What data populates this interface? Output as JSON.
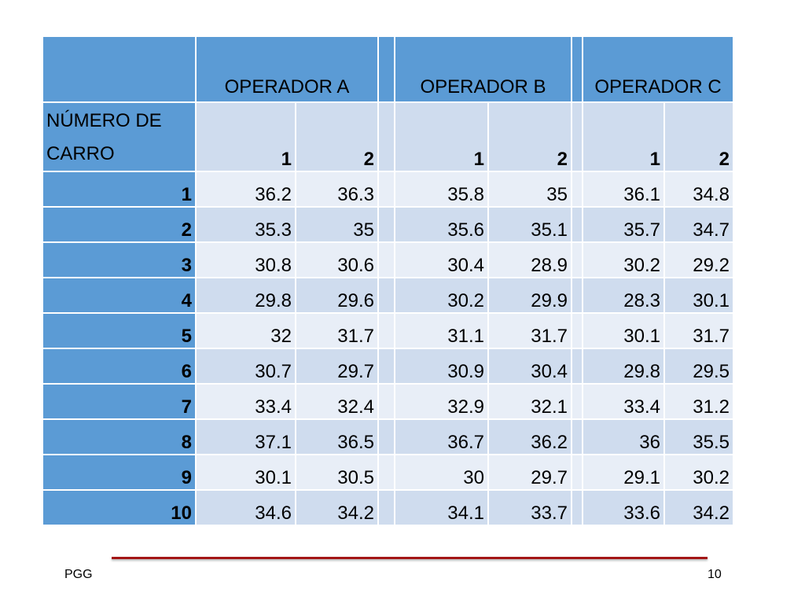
{
  "table": {
    "operators": [
      "OPERADOR A",
      "OPERADOR B",
      "OPERADOR C"
    ],
    "row_header_label": "NÚMERO DE CARRO",
    "row_header_line1": "NÚMERO DE",
    "row_header_line2": "CARRO",
    "sub_headers": [
      "1",
      "2",
      "1",
      "2",
      "1",
      "2"
    ],
    "rows": [
      {
        "carro": "1",
        "values": [
          "36.2",
          "36.3",
          "35.8",
          "35",
          "36.1",
          "34.8"
        ]
      },
      {
        "carro": "2",
        "values": [
          "35.3",
          "35",
          "35.6",
          "35.1",
          "35.7",
          "34.7"
        ]
      },
      {
        "carro": "3",
        "values": [
          "30.8",
          "30.6",
          "30.4",
          "28.9",
          "30.2",
          "29.2"
        ]
      },
      {
        "carro": "4",
        "values": [
          "29.8",
          "29.6",
          "30.2",
          "29.9",
          "28.3",
          "30.1"
        ]
      },
      {
        "carro": "5",
        "values": [
          "32",
          "31.7",
          "31.1",
          "31.7",
          "30.1",
          "31.7"
        ]
      },
      {
        "carro": "6",
        "values": [
          "30.7",
          "29.7",
          "30.9",
          "30.4",
          "29.8",
          "29.5"
        ]
      },
      {
        "carro": "7",
        "values": [
          "33.4",
          "32.4",
          "32.9",
          "32.1",
          "33.4",
          "31.2"
        ]
      },
      {
        "carro": "8",
        "values": [
          "37.1",
          "36.5",
          "36.7",
          "36.2",
          "36",
          "35.5"
        ]
      },
      {
        "carro": "9",
        "values": [
          "30.1",
          "30.5",
          "30",
          "29.7",
          "29.1",
          "30.2"
        ]
      },
      {
        "carro": "10",
        "values": [
          "34.6",
          "34.2",
          "34.1",
          "33.7",
          "33.6",
          "34.2"
        ]
      }
    ]
  },
  "footer": {
    "left": "PGG",
    "right": "10"
  },
  "colors": {
    "header_blue": "#5b9bd5",
    "row_dark": "#cfdcee",
    "row_light": "#e8eef7",
    "divider_red": "#a31515"
  }
}
